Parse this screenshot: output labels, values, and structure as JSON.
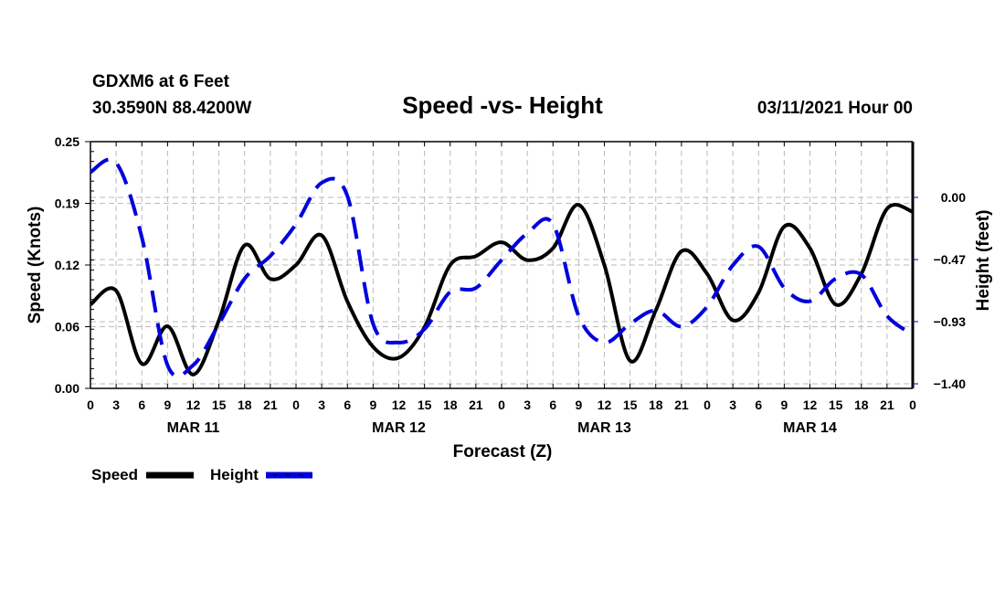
{
  "header": {
    "station": "GDXM6 at 6 Feet",
    "coords": "30.3590N 88.4200W",
    "title": "Speed -vs- Height",
    "datetime": "03/11/2021 Hour 00"
  },
  "legend": {
    "items": [
      {
        "label": "Speed",
        "color": "#000000",
        "style": "solid"
      },
      {
        "label": "Height",
        "color": "#0000dd",
        "style": "dashed"
      }
    ]
  },
  "chart_data": {
    "type": "line",
    "title": "Speed -vs- Height",
    "xlabel": "Forecast (Z)",
    "ylabel": "Speed (Knots)",
    "y2label": "Height (feet)",
    "xlim": [
      0,
      96
    ],
    "ylim": [
      0,
      0.25
    ],
    "y2lim": [
      -1.4,
      0.37
    ],
    "yticks": [
      "0.00",
      "0.06",
      "0.12",
      "0.19",
      "0.25"
    ],
    "ytick_values": [
      0.0,
      0.0625,
      0.125,
      0.1875,
      0.25
    ],
    "y2ticks": [
      "0.00",
      "-0.47",
      "-0.93",
      "-1.40"
    ],
    "y2tick_values": [
      0.0,
      -0.467,
      -0.933,
      -1.4
    ],
    "xtick_labels": [
      "0",
      "3",
      "6",
      "9",
      "12",
      "15",
      "18",
      "21",
      "0",
      "3",
      "6",
      "9",
      "12",
      "15",
      "18",
      "21",
      "0",
      "3",
      "6",
      "9",
      "12",
      "15",
      "18",
      "21",
      "0",
      "3",
      "6",
      "9",
      "12",
      "15",
      "18",
      "21",
      "0"
    ],
    "day_labels": [
      {
        "label": "MAR 11",
        "hour": 12
      },
      {
        "label": "MAR 12",
        "hour": 36
      },
      {
        "label": "MAR 13",
        "hour": 60
      },
      {
        "label": "MAR 14",
        "hour": 84
      }
    ],
    "grid": true,
    "legend_position": "bottom-left",
    "x": [
      0,
      3,
      6,
      9,
      12,
      15,
      18,
      21,
      24,
      27,
      30,
      33,
      36,
      39,
      42,
      45,
      48,
      51,
      54,
      57,
      60,
      63,
      66,
      69,
      72,
      75,
      78,
      81,
      84,
      87,
      90,
      93,
      96
    ],
    "series": [
      {
        "name": "Speed",
        "axis": "left",
        "color": "#000000",
        "dash": false,
        "values": [
          0.085,
          0.099,
          0.025,
          0.063,
          0.014,
          0.069,
          0.145,
          0.111,
          0.125,
          0.155,
          0.088,
          0.042,
          0.031,
          0.062,
          0.125,
          0.134,
          0.148,
          0.13,
          0.142,
          0.186,
          0.125,
          0.028,
          0.079,
          0.139,
          0.116,
          0.069,
          0.097,
          0.164,
          0.142,
          0.085,
          0.116,
          0.182,
          0.179
        ]
      },
      {
        "name": "Height",
        "axis": "right",
        "color": "#0000dd",
        "dash": true,
        "values": [
          0.19,
          0.26,
          -0.3,
          -1.26,
          -1.26,
          -0.95,
          -0.61,
          -0.44,
          -0.2,
          0.11,
          0.01,
          -0.95,
          -1.09,
          -0.99,
          -0.71,
          -0.68,
          -0.47,
          -0.27,
          -0.2,
          -0.89,
          -1.09,
          -0.95,
          -0.85,
          -0.97,
          -0.82,
          -0.51,
          -0.37,
          -0.68,
          -0.78,
          -0.61,
          -0.58,
          -0.89,
          -1.03
        ]
      }
    ]
  }
}
